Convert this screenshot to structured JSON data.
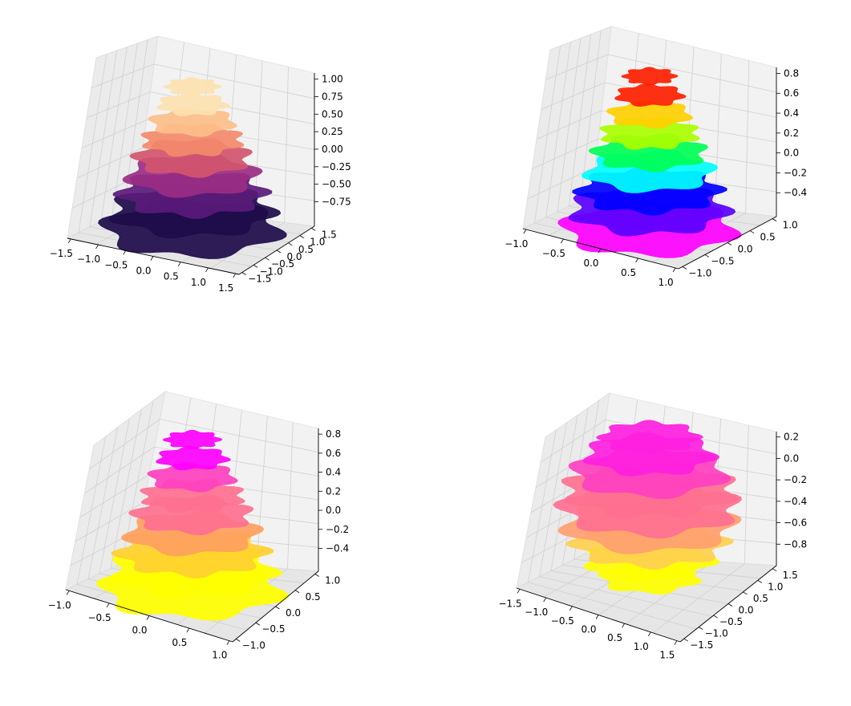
{
  "chart_data": [
    {
      "type": "surface3d",
      "panel": "top-left",
      "colormap": "magma",
      "colors": [
        "#1d0b4a",
        "#5b1a7a",
        "#9b2d84",
        "#d2556e",
        "#f48a6b",
        "#fdbf8a",
        "#fde2b0"
      ],
      "x_ticks": [
        "−1.5",
        "−1.0",
        "−0.5",
        "0.0",
        "0.5",
        "1.0",
        "1.5"
      ],
      "y_ticks": [
        "−1.5",
        "−1.0",
        "−0.5",
        "0.0",
        "0.5",
        "1.0",
        "1.5"
      ],
      "z_ticks": [
        "1.00",
        "0.75",
        "0.50",
        "0.25",
        "0.00",
        "−0.25",
        "−0.50",
        "−0.75"
      ],
      "xlim": [
        -1.5,
        1.5
      ],
      "ylim": [
        -1.5,
        1.5
      ],
      "zlim": [
        -0.85,
        1.0
      ],
      "grid": true
    },
    {
      "type": "surface3d",
      "panel": "top-right",
      "colormap": "hsv",
      "colors": [
        "#ff00ff",
        "#5a00ff",
        "#0000ff",
        "#00ffff",
        "#00ff55",
        "#aaff00",
        "#ffd000",
        "#ff2000"
      ],
      "x_ticks": [
        "−1.0",
        "−0.5",
        "0.0",
        "0.5",
        "1.0"
      ],
      "y_ticks": [
        "−1.0",
        "−0.5",
        "0.0",
        "0.5",
        "1.0"
      ],
      "z_ticks": [
        "0.8",
        "0.6",
        "0.4",
        "0.2",
        "0.0",
        "−0.2",
        "−0.4"
      ],
      "xlim": [
        -1.0,
        1.0
      ],
      "ylim": [
        -1.0,
        1.0
      ],
      "zlim": [
        -0.45,
        0.95
      ],
      "grid": true
    },
    {
      "type": "surface3d",
      "panel": "bottom-left",
      "colormap": "spring",
      "colors": [
        "#ffff00",
        "#ffd030",
        "#ffa060",
        "#ff7090",
        "#ff40c0",
        "#ff00ff"
      ],
      "x_ticks": [
        "−1.0",
        "−0.5",
        "0.0",
        "0.5",
        "1.0"
      ],
      "y_ticks": [
        "−1.0",
        "−0.5",
        "0.0",
        "0.5",
        "1.0"
      ],
      "z_ticks": [
        "0.8",
        "0.6",
        "0.4",
        "0.2",
        "0.0",
        "−0.2",
        "−0.4"
      ],
      "xlim": [
        -1.0,
        1.0
      ],
      "ylim": [
        -1.0,
        1.0
      ],
      "zlim": [
        -0.45,
        0.95
      ],
      "grid": true
    },
    {
      "type": "surface3d",
      "panel": "bottom-right",
      "colormap": "spring",
      "colors": [
        "#ffff00",
        "#ffd050",
        "#ffa070",
        "#ff7090",
        "#ff40c0",
        "#ff20e0"
      ],
      "x_ticks": [
        "−1.5",
        "−1.0",
        "−0.5",
        "0.0",
        "0.5",
        "1.0",
        "1.5"
      ],
      "y_ticks": [
        "−1.5",
        "−1.0",
        "−0.5",
        "0.0",
        "0.5",
        "1.0",
        "1.5"
      ],
      "z_ticks": [
        "0.2",
        "0.0",
        "−0.2",
        "−0.4",
        "−0.6",
        "−0.8"
      ],
      "xlim": [
        -1.5,
        1.5
      ],
      "ylim": [
        -1.5,
        1.5
      ],
      "zlim": [
        -0.9,
        0.35
      ],
      "grid": true
    }
  ]
}
